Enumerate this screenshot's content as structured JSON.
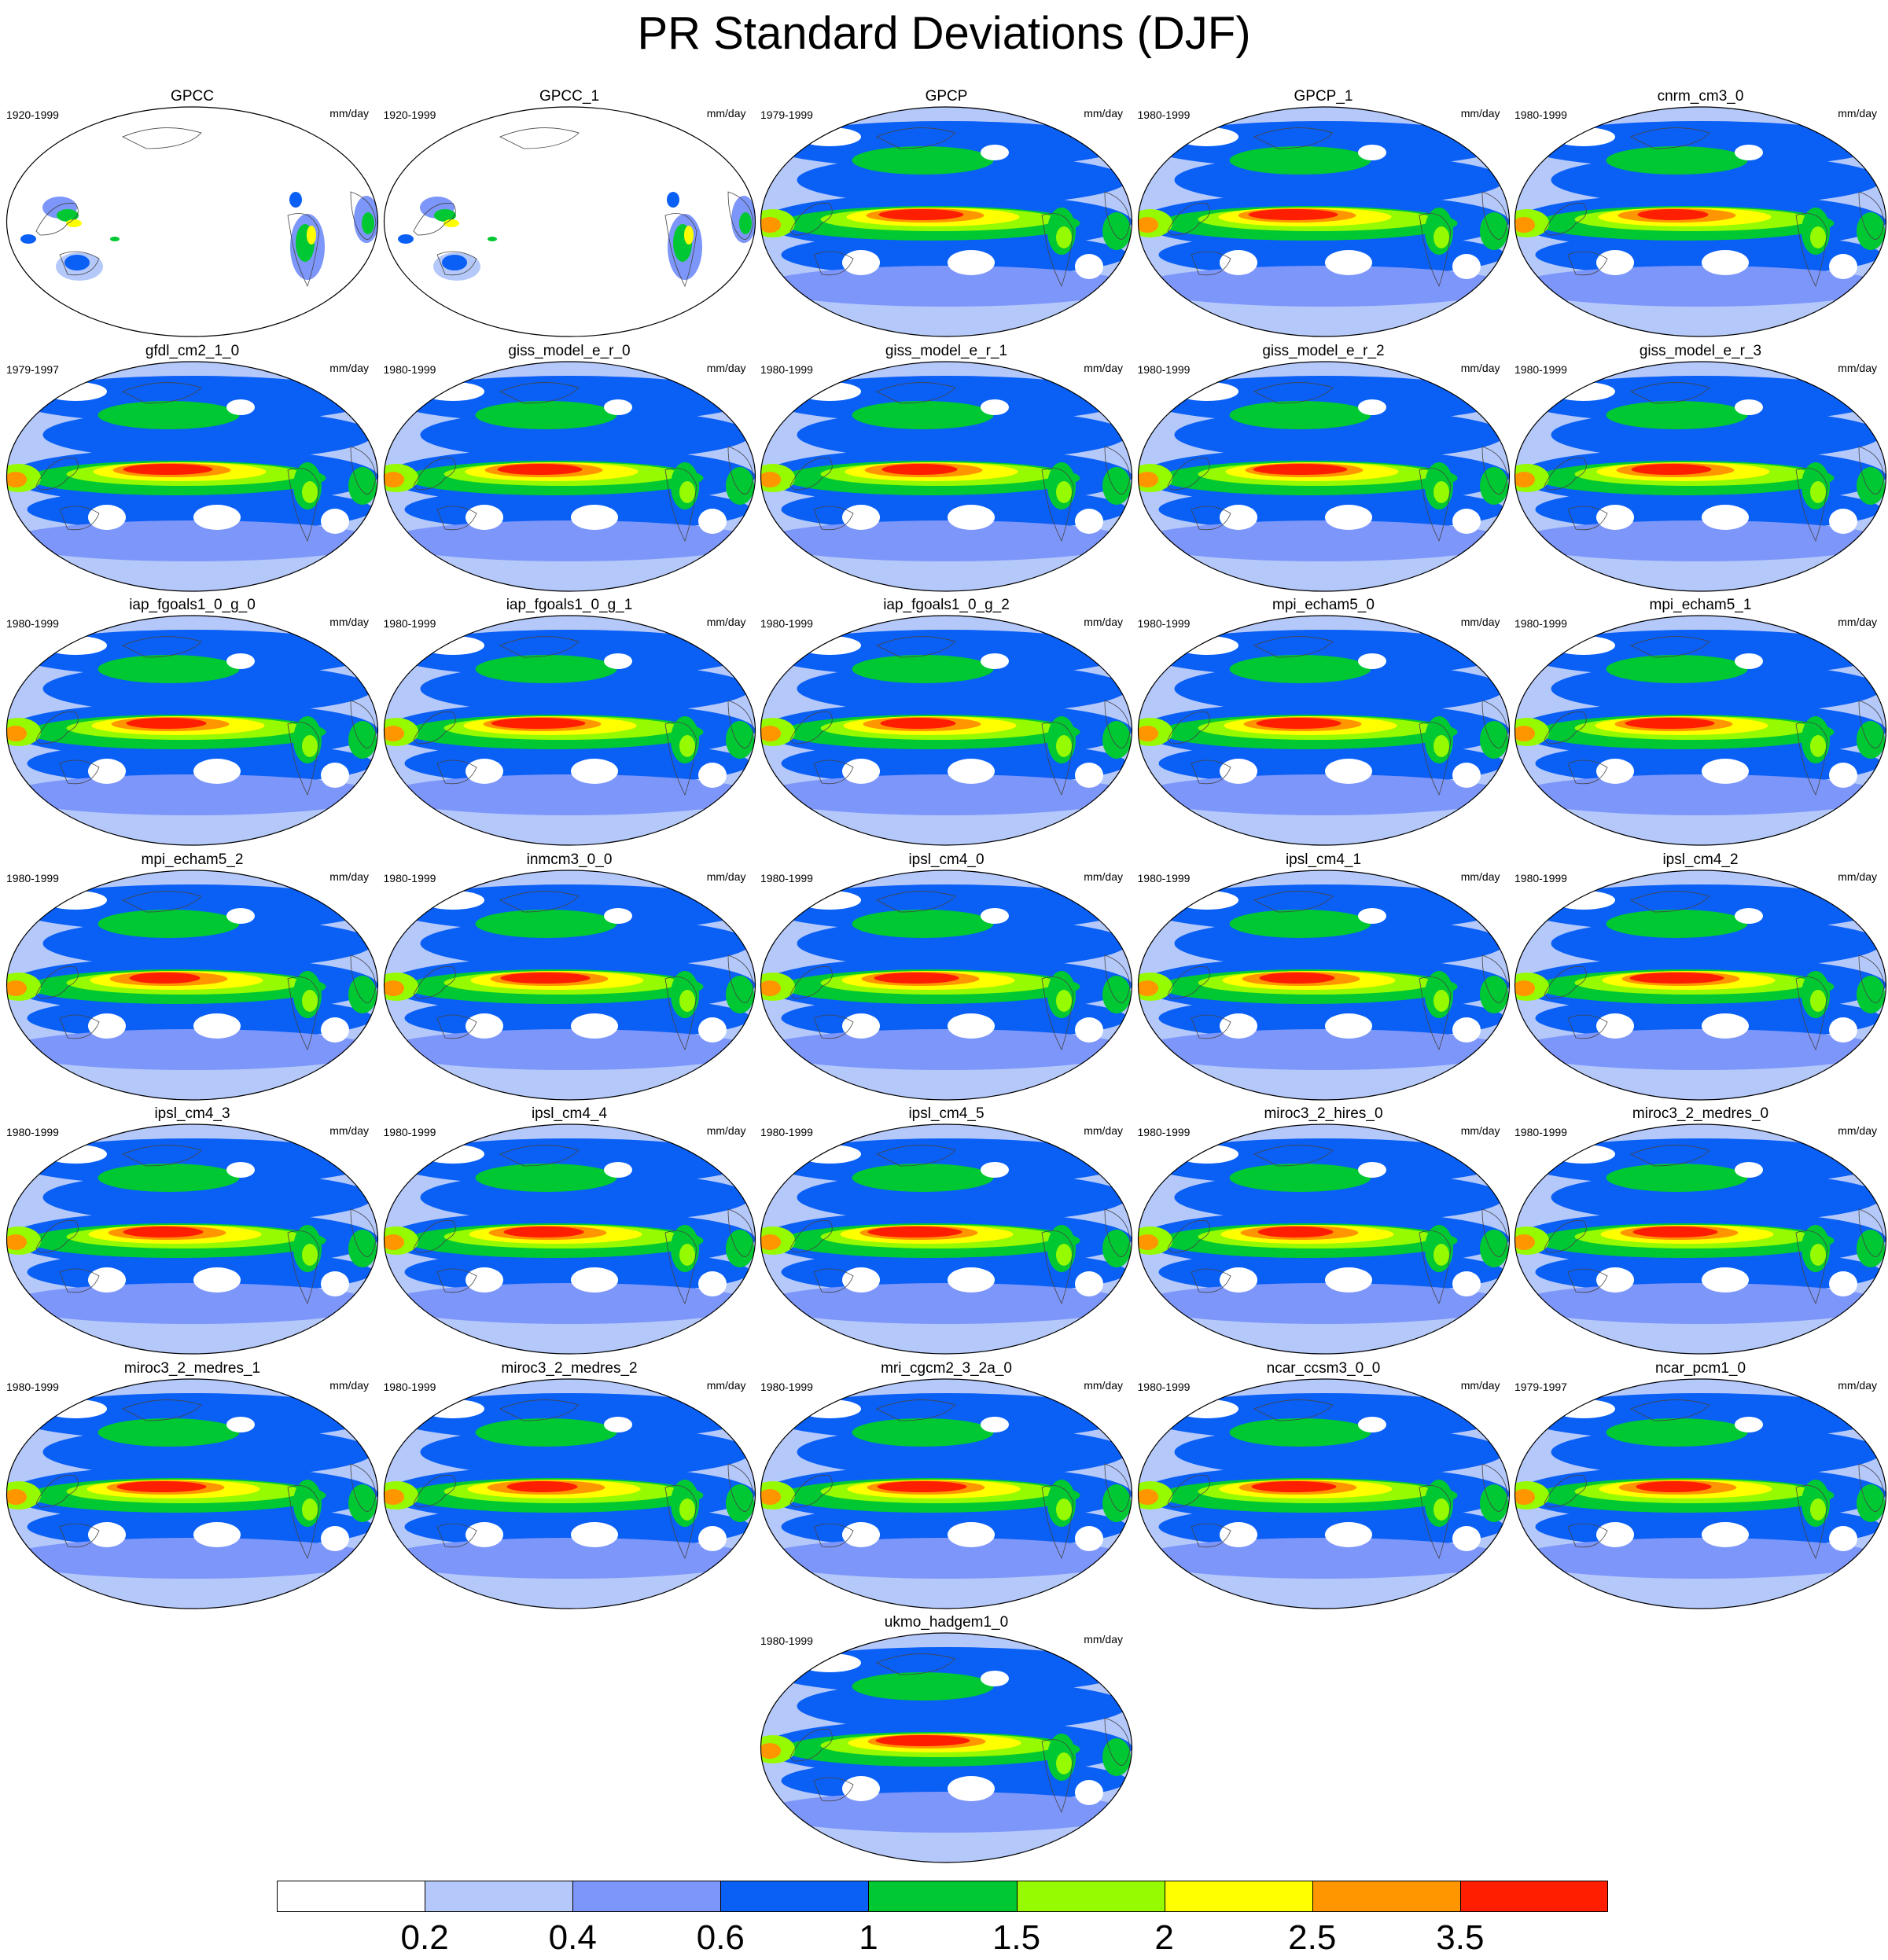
{
  "title": "PR Standard Deviations (DJF)",
  "unit": "mm/day",
  "colorbar": {
    "colors": [
      "#ffffff",
      "#b4c8fa",
      "#7d96fa",
      "#0a5ff5",
      "#00c832",
      "#96fa00",
      "#ffff00",
      "#ff9600",
      "#ff1e00"
    ],
    "labels": [
      "0.2",
      "0.4",
      "0.6",
      "1",
      "1.5",
      "2",
      "2.5",
      "3.5"
    ]
  },
  "panels": [
    {
      "name": "GPCC",
      "period": "1920-1999"
    },
    {
      "name": "GPCC_1",
      "period": "1920-1999"
    },
    {
      "name": "GPCP",
      "period": "1979-1999"
    },
    {
      "name": "GPCP_1",
      "period": "1980-1999"
    },
    {
      "name": "cnrm_cm3_0",
      "period": "1980-1999"
    },
    {
      "name": "gfdl_cm2_1_0",
      "period": "1979-1997"
    },
    {
      "name": "giss_model_e_r_0",
      "period": "1980-1999"
    },
    {
      "name": "giss_model_e_r_1",
      "period": "1980-1999"
    },
    {
      "name": "giss_model_e_r_2",
      "period": "1980-1999"
    },
    {
      "name": "giss_model_e_r_3",
      "period": "1980-1999"
    },
    {
      "name": "iap_fgoals1_0_g_0",
      "period": "1980-1999"
    },
    {
      "name": "iap_fgoals1_0_g_1",
      "period": "1980-1999"
    },
    {
      "name": "iap_fgoals1_0_g_2",
      "period": "1980-1999"
    },
    {
      "name": "mpi_echam5_0",
      "period": "1980-1999"
    },
    {
      "name": "mpi_echam5_1",
      "period": "1980-1999"
    },
    {
      "name": "mpi_echam5_2",
      "period": "1980-1999"
    },
    {
      "name": "inmcm3_0_0",
      "period": "1980-1999"
    },
    {
      "name": "ipsl_cm4_0",
      "period": "1980-1999"
    },
    {
      "name": "ipsl_cm4_1",
      "period": "1980-1999"
    },
    {
      "name": "ipsl_cm4_2",
      "period": "1980-1999"
    },
    {
      "name": "ipsl_cm4_3",
      "period": "1980-1999"
    },
    {
      "name": "ipsl_cm4_4",
      "period": "1980-1999"
    },
    {
      "name": "ipsl_cm4_5",
      "period": "1980-1999"
    },
    {
      "name": "miroc3_2_hires_0",
      "period": "1980-1999"
    },
    {
      "name": "miroc3_2_medres_0",
      "period": "1980-1999"
    },
    {
      "name": "miroc3_2_medres_1",
      "period": "1980-1999"
    },
    {
      "name": "miroc3_2_medres_2",
      "period": "1980-1999"
    },
    {
      "name": "mri_cgcm2_3_2a_0",
      "period": "1980-1999"
    },
    {
      "name": "ncar_ccsm3_0_0",
      "period": "1980-1999"
    },
    {
      "name": "ncar_pcm1_0",
      "period": "1979-1997"
    },
    {
      "name": "ukmo_hadgem1_0",
      "period": "1980-1999"
    }
  ]
}
